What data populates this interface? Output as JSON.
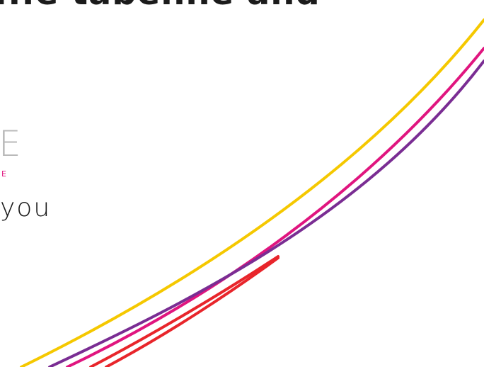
{
  "slide": {
    "headline": "...e tabenne and",
    "big_letter": "E",
    "small_letter": "E",
    "body_text": "you"
  },
  "colors": {
    "background": "#ffffff",
    "yellow": "#f5c800",
    "magenta": "#e0157f",
    "purple": "#7a2d93",
    "red": "#e8252b"
  }
}
